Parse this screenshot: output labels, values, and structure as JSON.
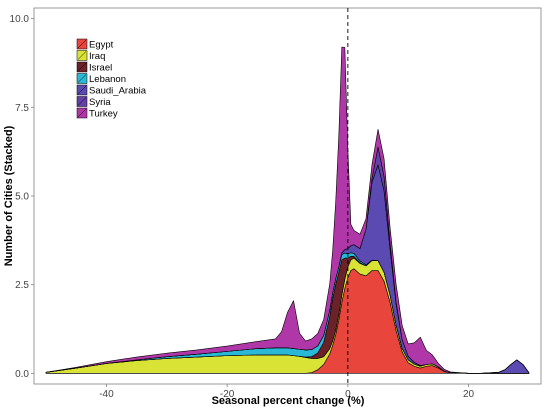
{
  "chart_data": {
    "type": "area",
    "stacked": true,
    "xlabel": "Seasonal percent change (%)",
    "ylabel": "Number of Cities (Stacked)",
    "xlim": [
      -52,
      32
    ],
    "ylim": [
      -0.3,
      10.3
    ],
    "x_ticks": [
      -40,
      -20,
      0,
      20
    ],
    "x_tick_labels": [
      "-40",
      "-20",
      "0",
      "20"
    ],
    "y_ticks": [
      0,
      2.5,
      5,
      7.5,
      10
    ],
    "y_tick_labels": [
      "0.0",
      "2.5",
      "5.0",
      "7.5",
      "10.0"
    ],
    "grid": false,
    "reference_line": {
      "x": 0,
      "style": "dashed"
    },
    "legend": {
      "position": "top-left",
      "entries": [
        "Egypt",
        "Iraq",
        "Israel",
        "Lebanon",
        "Saudi_Arabia",
        "Syria",
        "Turkey"
      ]
    },
    "x": [
      -50,
      -45,
      -40,
      -35,
      -30,
      -25,
      -20,
      -15,
      -12,
      -11,
      -10,
      -9,
      -8,
      -7,
      -6,
      -5,
      -4,
      -3,
      -2.5,
      -2,
      -1.5,
      -1,
      -0.5,
      0,
      0.5,
      1,
      2,
      3,
      4,
      5,
      6,
      7,
      8,
      9,
      10,
      11,
      12,
      13,
      14,
      15,
      16,
      17,
      20,
      22,
      25,
      26,
      27,
      28,
      29,
      30
    ],
    "series": [
      {
        "name": "Egypt",
        "color": "#e8453c",
        "values": [
          0,
          0,
          0,
          0,
          0,
          0,
          0,
          0,
          0,
          0,
          0,
          0,
          0,
          0,
          0.02,
          0.1,
          0.25,
          0.55,
          0.8,
          1.1,
          1.5,
          2.0,
          2.4,
          2.7,
          2.9,
          2.95,
          2.8,
          2.75,
          2.9,
          2.9,
          2.6,
          2.0,
          1.2,
          0.6,
          0.3,
          0.2,
          0.15,
          0.2,
          0.22,
          0.15,
          0.05,
          0.02,
          0,
          0,
          0,
          0,
          0,
          0,
          0,
          0
        ]
      },
      {
        "name": "Iraq",
        "color": "#d8e335",
        "values": [
          0.03,
          0.15,
          0.28,
          0.36,
          0.42,
          0.46,
          0.5,
          0.52,
          0.52,
          0.52,
          0.52,
          0.5,
          0.48,
          0.45,
          0.4,
          0.32,
          0.22,
          0.15,
          0.12,
          0.12,
          0.15,
          0.2,
          0.25,
          0.3,
          0.3,
          0.3,
          0.3,
          0.28,
          0.28,
          0.28,
          0.25,
          0.2,
          0.15,
          0.1,
          0.08,
          0.06,
          0.05,
          0.05,
          0.05,
          0.03,
          0.01,
          0,
          0,
          0,
          0,
          0,
          0,
          0,
          0,
          0
        ]
      },
      {
        "name": "Israel",
        "color": "#6b2128",
        "values": [
          0,
          0,
          0,
          0,
          0,
          0,
          0,
          0,
          0,
          0,
          0,
          0,
          0,
          0.01,
          0.05,
          0.15,
          0.4,
          0.9,
          1.2,
          1.3,
          1.2,
          1.0,
          0.6,
          0.25,
          0.1,
          0.05,
          0.02,
          0,
          0,
          0,
          0,
          0,
          0,
          0,
          0,
          0,
          0,
          0,
          0,
          0,
          0,
          0,
          0,
          0,
          0,
          0,
          0,
          0,
          0,
          0
        ]
      },
      {
        "name": "Lebanon",
        "color": "#29b9d6",
        "values": [
          0,
          0,
          0,
          0.02,
          0.05,
          0.08,
          0.12,
          0.18,
          0.2,
          0.2,
          0.2,
          0.2,
          0.2,
          0.2,
          0.2,
          0.2,
          0.2,
          0.18,
          0.17,
          0.16,
          0.15,
          0.15,
          0.14,
          0.12,
          0.1,
          0.08,
          0.05,
          0.03,
          0.01,
          0,
          0,
          0,
          0,
          0,
          0,
          0,
          0,
          0,
          0,
          0,
          0,
          0,
          0,
          0,
          0,
          0,
          0,
          0,
          0,
          0
        ]
      },
      {
        "name": "Saudi_Arabia",
        "color": "#5b4ab2",
        "values": [
          0,
          0,
          0,
          0,
          0,
          0,
          0,
          0,
          0,
          0,
          0,
          0,
          0,
          0,
          0,
          0,
          0,
          0,
          0,
          0,
          0,
          0.05,
          0.1,
          0.15,
          0.2,
          0.25,
          0.35,
          1.0,
          2.2,
          2.7,
          2.3,
          1.3,
          0.6,
          0.25,
          0.1,
          0.05,
          0.02,
          0,
          0,
          0,
          0,
          0,
          0,
          0,
          0.03,
          0.1,
          0.25,
          0.38,
          0.25,
          0.02
        ]
      },
      {
        "name": "Syria",
        "color": "#6440a8",
        "values": [
          0,
          0,
          0,
          0,
          0,
          0,
          0,
          0,
          0,
          0,
          0,
          0,
          0,
          0,
          0,
          0,
          0,
          0,
          0,
          0,
          0,
          0,
          0,
          0,
          0,
          0,
          0,
          0,
          0.1,
          0.5,
          0.4,
          0.15,
          0.05,
          0,
          0,
          0,
          0,
          0,
          0,
          0,
          0,
          0,
          0,
          0,
          0,
          0,
          0,
          0,
          0,
          0
        ]
      },
      {
        "name": "Turkey",
        "color": "#b037a8",
        "values": [
          0,
          0.02,
          0.05,
          0.08,
          0.1,
          0.12,
          0.15,
          0.2,
          0.25,
          0.45,
          1.0,
          1.35,
          0.45,
          0.25,
          0.3,
          0.35,
          0.45,
          0.75,
          1.2,
          2.2,
          3.7,
          5.8,
          5.7,
          2.8,
          0.6,
          0.4,
          0.4,
          0.3,
          0.4,
          0.5,
          0.5,
          0.45,
          0.5,
          0.4,
          0.35,
          0.55,
          0.8,
          0.4,
          0.25,
          0.1,
          0.05,
          0.02,
          0,
          0,
          0,
          0,
          0,
          0,
          0,
          0
        ]
      }
    ]
  }
}
